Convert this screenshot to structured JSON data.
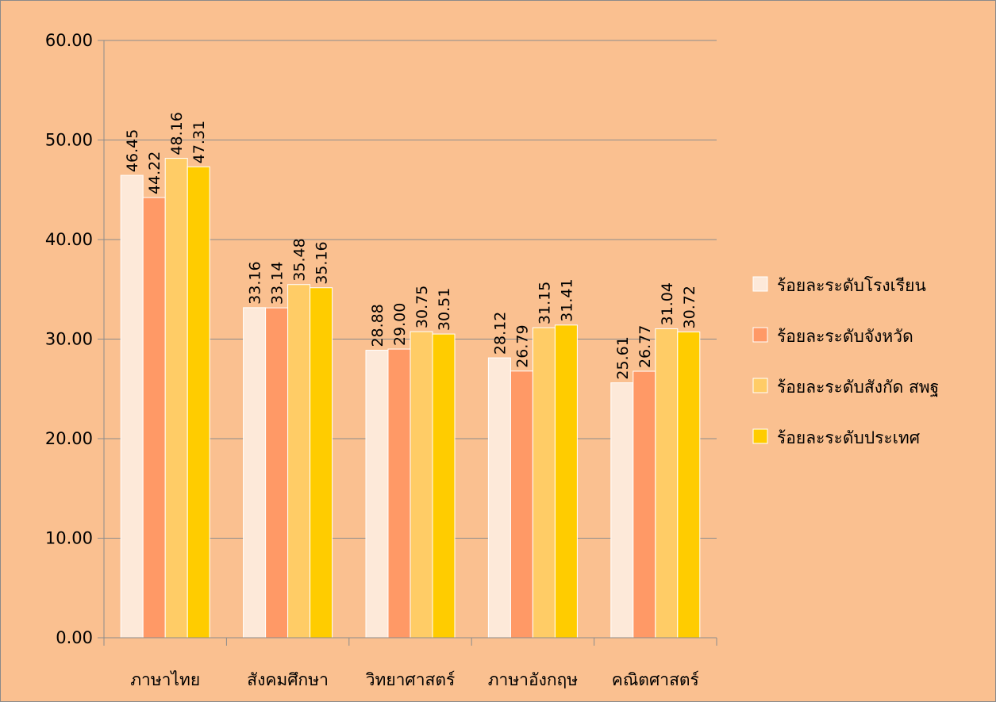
{
  "chart_data": {
    "type": "bar",
    "categories": [
      "ภาษาไทย",
      "สังคมศึกษา",
      "วิทยาศาสตร์",
      "ภาษาอังกฤษ",
      "คณิตศาสตร์"
    ],
    "series": [
      {
        "name": "ร้อยละระดับโรงเรียน",
        "color": "#fde9d9",
        "values": [
          46.45,
          33.16,
          28.88,
          28.12,
          25.61
        ],
        "labels": [
          "46.45",
          "33.16",
          "28.88",
          "28.12",
          "25.61"
        ]
      },
      {
        "name": "ร้อยละระดับจังหวัด",
        "color": "#ff9966",
        "values": [
          44.22,
          33.14,
          29.0,
          26.79,
          26.77
        ],
        "labels": [
          "44.22",
          "33.14",
          "29.00",
          "26.79",
          "26.77"
        ]
      },
      {
        "name": "ร้อยละระดับสังกัด สพฐ",
        "color": "#ffcc66",
        "values": [
          48.16,
          35.48,
          30.75,
          31.15,
          31.04
        ],
        "labels": [
          "48.16",
          "35.48",
          "30.75",
          "31.15",
          "31.04"
        ]
      },
      {
        "name": "ร้อยละระดับประเทศ",
        "color": "#ffcc00",
        "values": [
          47.31,
          35.16,
          30.51,
          31.41,
          30.72
        ],
        "labels": [
          "47.31",
          "35.16",
          "30.51",
          "31.41",
          "30.72"
        ]
      }
    ],
    "ylim": [
      0,
      60
    ],
    "yticks": [
      "0.00",
      "10.00",
      "20.00",
      "30.00",
      "40.00",
      "50.00",
      "60.00"
    ],
    "grid": true,
    "legend": "right"
  }
}
